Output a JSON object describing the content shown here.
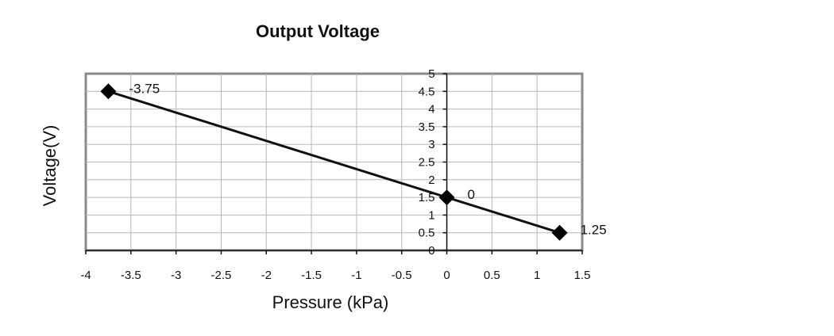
{
  "chart_data": {
    "type": "scatter",
    "title": "Output Voltage",
    "xlabel": "Pressure (kPa)",
    "ylabel": "Voltage(V)",
    "xlim": [
      -4,
      1.5
    ],
    "ylim": [
      0,
      5
    ],
    "x_ticks": [
      "-4",
      "-3.5",
      "-3",
      "-2.5",
      "-2",
      "-1.5",
      "-1",
      "-0.5",
      "0",
      "0.5",
      "1",
      "1.5"
    ],
    "y_ticks": [
      "0",
      "0.5",
      "1",
      "1.5",
      "2",
      "2.5",
      "3",
      "3.5",
      "4",
      "4.5",
      "5"
    ],
    "grid": true,
    "legend": false,
    "series": [
      {
        "points": [
          {
            "x": -3.75,
            "y": 4.5,
            "label": "-3.75"
          },
          {
            "x": 0,
            "y": 1.5,
            "label": "0"
          },
          {
            "x": 1.25,
            "y": 0.5,
            "label": "1.25"
          }
        ],
        "marker": "diamond",
        "color": "#000000",
        "connected": true
      }
    ]
  }
}
